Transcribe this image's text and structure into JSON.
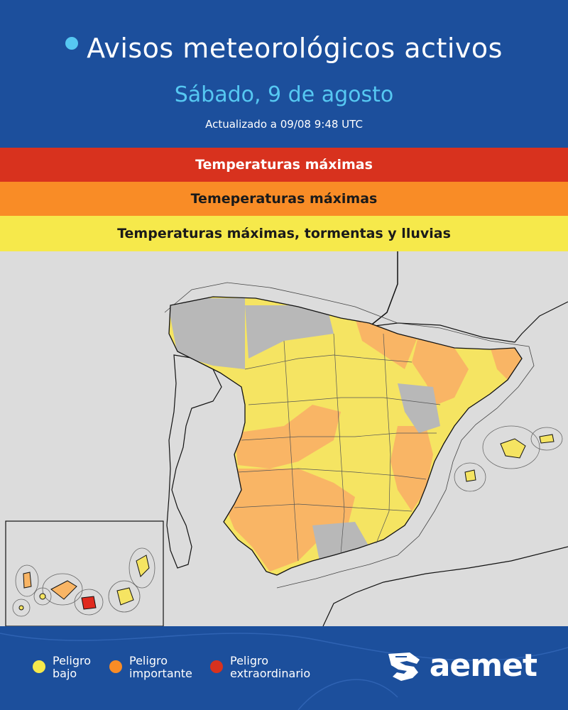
{
  "header": {
    "title": "Avisos meteorológicos activos",
    "date": "Sábado, 9 de agosto",
    "updated": "Actualizado a 09/08  9:48 UTC"
  },
  "bands": {
    "red": "Temperaturas máximas",
    "orange": "Temeperaturas máximas",
    "yellow": "Temperaturas máximas, tormentas y lluvias"
  },
  "legend": {
    "low": "Peligro\nbajo",
    "important": "Peligro\nimportante",
    "extraordinary": "Peligro\nextraordinario"
  },
  "logo": {
    "text": "aemet"
  },
  "colors": {
    "background": "#1c4f9c",
    "accent": "#56c8f2",
    "red": "#d8321e",
    "orange": "#f98c26",
    "yellow": "#f6e94b",
    "map_gray": "#dcdcdc",
    "low_fill": "#f5e462",
    "important_fill": "#f9b565",
    "extraordinary_fill": "#e02a1e"
  },
  "icons": {
    "title": "bullet-dot-icon",
    "logo": "aemet-logo-icon"
  }
}
